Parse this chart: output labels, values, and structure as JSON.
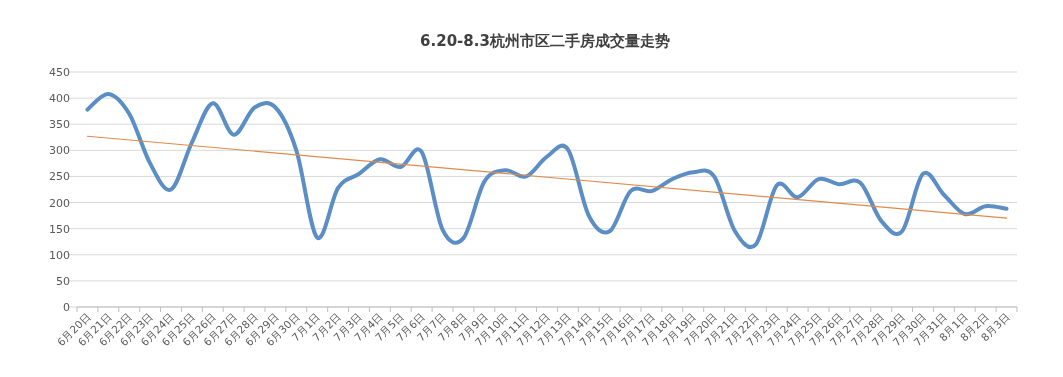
{
  "chart_data": {
    "type": "line",
    "title": "6.20-8.3杭州市区二手房成交量走势",
    "categories": [
      "6月20日",
      "6月21日",
      "6月22日",
      "6月23日",
      "6月24日",
      "6月25日",
      "6月26日",
      "6月27日",
      "6月28日",
      "6月29日",
      "6月30日",
      "7月1日",
      "7月2日",
      "7月3日",
      "7月4日",
      "7月5日",
      "7月6日",
      "7月7日",
      "7月8日",
      "7月9日",
      "7月10日",
      "7月11日",
      "7月12日",
      "7月13日",
      "7月14日",
      "7月15日",
      "7月16日",
      "7月17日",
      "7月18日",
      "7月19日",
      "7月20日",
      "7月21日",
      "7月22日",
      "7月23日",
      "7月24日",
      "7月25日",
      "7月26日",
      "7月27日",
      "7月28日",
      "7月29日",
      "7月30日",
      "7月31日",
      "8月1日",
      "8月2日",
      "8月3日"
    ],
    "series": [
      {
        "color": "#5b8ec4",
        "values": [
          378,
          408,
          370,
          275,
          225,
          315,
          390,
          330,
          382,
          382,
          300,
          133,
          228,
          255,
          283,
          268,
          297,
          148,
          132,
          240,
          262,
          250,
          288,
          302,
          175,
          145,
          222,
          222,
          245,
          258,
          250,
          145,
          120,
          233,
          210,
          245,
          235,
          238,
          165,
          145,
          255,
          215,
          178,
          193,
          188
        ]
      },
      {
        "type": "line",
        "color": "#e08a4c",
        "x": [
          "6月20日",
          "8月3日"
        ],
        "values": [
          327,
          170
        ]
      }
    ],
    "ylim": [
      0,
      450
    ],
    "yticks": [
      0,
      50,
      100,
      150,
      200,
      250,
      300,
      350,
      400,
      450
    ],
    "grid": "y"
  }
}
